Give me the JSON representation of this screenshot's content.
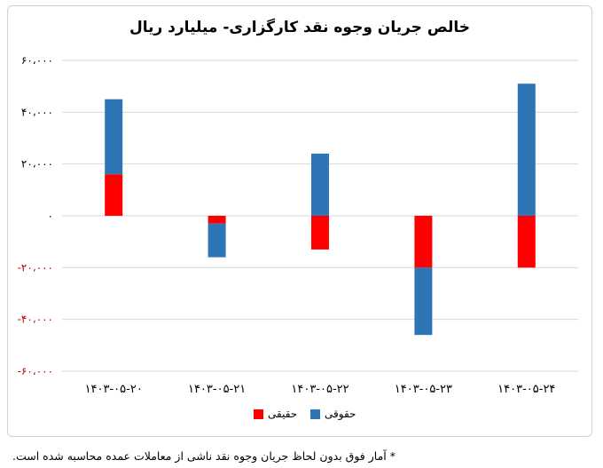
{
  "chart_data": {
    "type": "bar",
    "stacked": true,
    "title": "خالص جریان وجوه نقد کارگزاری- میلیارد ریال",
    "categories": [
      "۱۴۰۳-۰۵-۲۰",
      "۱۴۰۳-۰۵-۲۱",
      "۱۴۰۳-۰۵-۲۲",
      "۱۴۰۳-۰۵-۲۳",
      "۱۴۰۳-۰۵-۲۴"
    ],
    "series": [
      {
        "name": "حقیقی",
        "color": "#ff0000",
        "values": [
          16000,
          -3000,
          -13000,
          -20000,
          -20000
        ]
      },
      {
        "name": "حقوقی",
        "color": "#2e75b6",
        "values": [
          29000,
          -13000,
          24000,
          -26000,
          51000
        ]
      }
    ],
    "ylim": [
      -60000,
      60000
    ],
    "yticks": [
      {
        "value": 60000,
        "label": "۶۰،۰۰۰"
      },
      {
        "value": 40000,
        "label": "۴۰،۰۰۰"
      },
      {
        "value": 20000,
        "label": "۲۰،۰۰۰"
      },
      {
        "value": 0,
        "label": "۰"
      },
      {
        "value": -20000,
        "label": "-۲۰،۰۰۰"
      },
      {
        "value": -40000,
        "label": "-۴۰،۰۰۰"
      },
      {
        "value": -60000,
        "label": "-۶۰،۰۰۰"
      }
    ],
    "positive_tick_color": "#000000",
    "negative_tick_color": "#c00000",
    "grid": true,
    "legend_position": "bottom"
  },
  "footnote": "* آمار فوق بدون لحاظ جریان وجوه نقد ناشی از معاملات عمده محاسبه شده است."
}
